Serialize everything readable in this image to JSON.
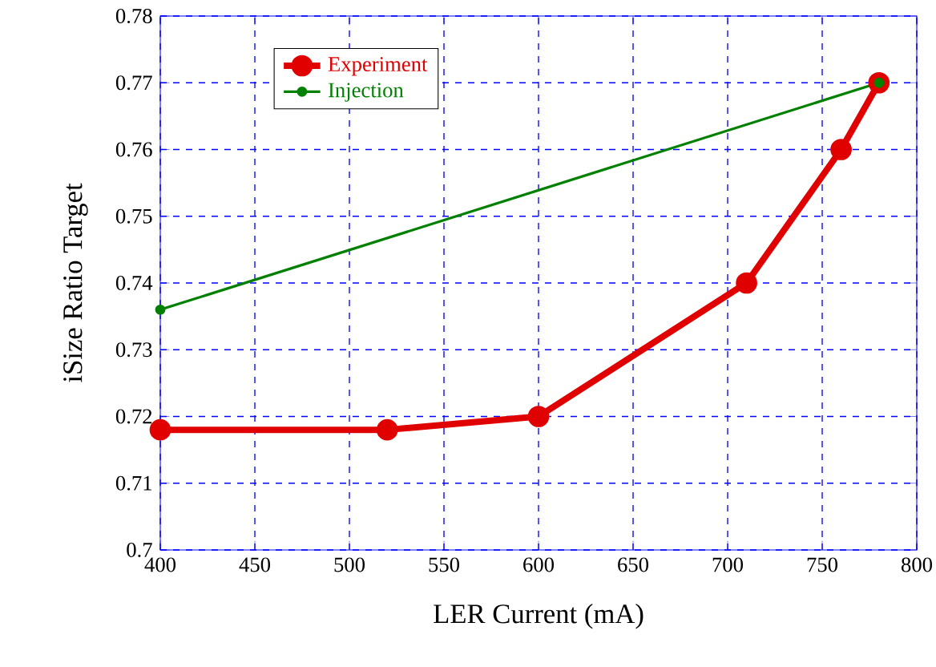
{
  "chart_data": {
    "type": "line",
    "xlabel": "LER Current (mA)",
    "ylabel": "iSize Ratio Target",
    "x": [
      400,
      520,
      600,
      710,
      760,
      780
    ],
    "series": [
      {
        "name": "Experiment",
        "color": "#e00000",
        "values": [
          0.718,
          0.718,
          0.72,
          0.74,
          0.76,
          0.77
        ],
        "marker": "circle"
      },
      {
        "name": "Injection",
        "color": "#008000",
        "x": [
          400,
          780
        ],
        "values": [
          0.736,
          0.77
        ],
        "marker": "circle"
      }
    ],
    "xlim": [
      400,
      800
    ],
    "ylim": [
      0.7,
      0.78
    ],
    "xticks": [
      400,
      450,
      500,
      550,
      600,
      650,
      700,
      750,
      800
    ],
    "yticks": [
      0.7,
      0.71,
      0.72,
      0.73,
      0.74,
      0.75,
      0.76,
      0.77,
      0.78
    ],
    "grid": true,
    "legend": "top left",
    "line_style": "solid"
  }
}
